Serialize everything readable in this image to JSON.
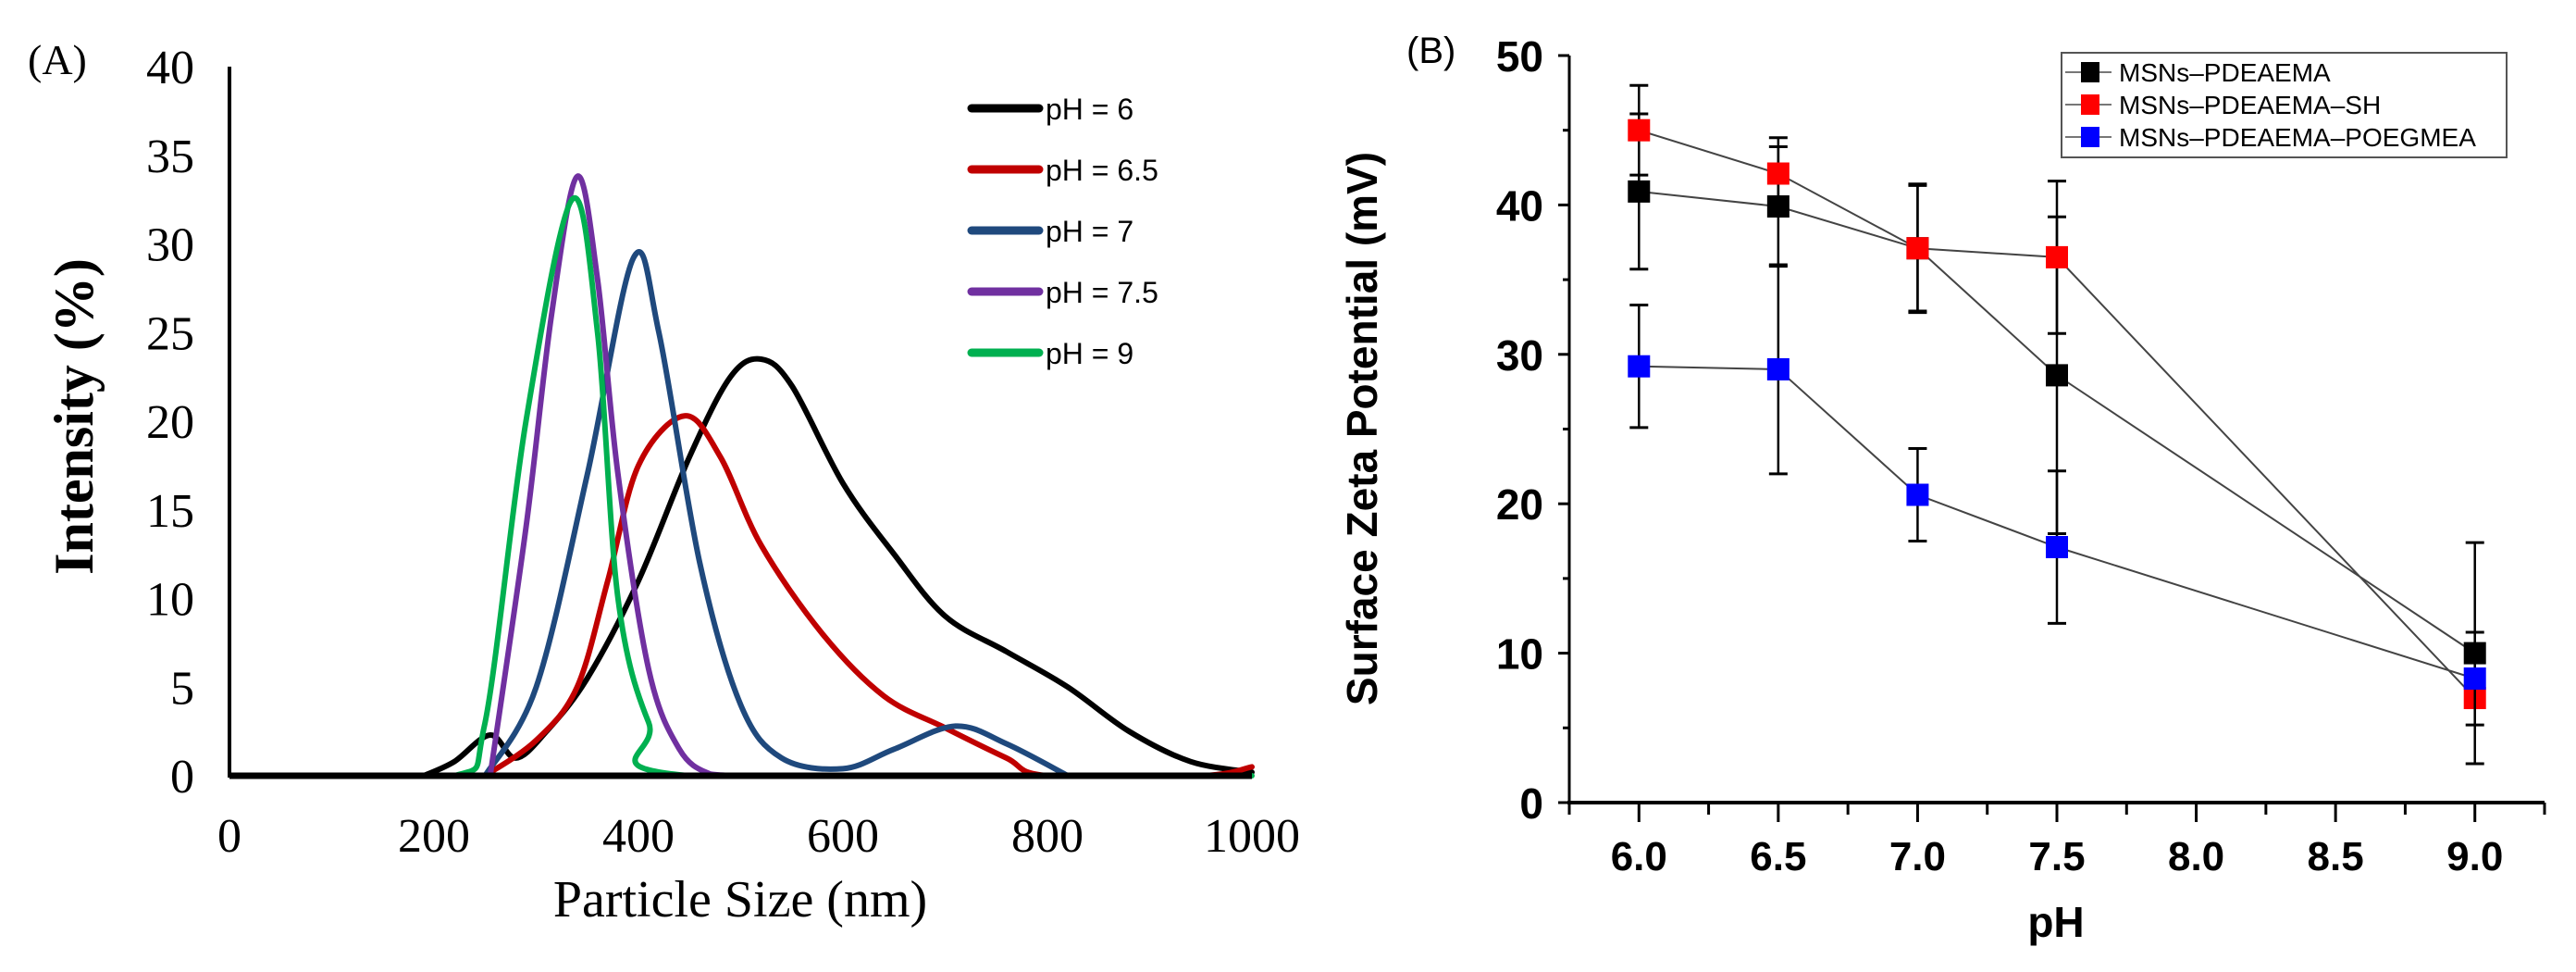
{
  "chart_data": [
    {
      "type": "line",
      "panel_label": "(A)",
      "xlabel": "Particle Size (nm)",
      "ylabel": "Intensity (%)",
      "xlim": [
        0,
        1000
      ],
      "ylim": [
        0,
        40
      ],
      "xticks": [
        "0",
        "200",
        "400",
        "600",
        "800",
        "1000"
      ],
      "yticks": [
        "0",
        "5",
        "10",
        "15",
        "20",
        "25",
        "30",
        "35",
        "40"
      ],
      "grid": false,
      "legend_position": "top-right",
      "series": [
        {
          "name": "pH = 6",
          "color": "#000000",
          "points": [
            [
              190,
              0
            ],
            [
              220,
              0.8
            ],
            [
              255,
              2.3
            ],
            [
              280,
              1.0
            ],
            [
              310,
              2.5
            ],
            [
              350,
              5.5
            ],
            [
              400,
              11
            ],
            [
              450,
              18
            ],
            [
              490,
              22.5
            ],
            [
              520,
              23.5
            ],
            [
              550,
              22
            ],
            [
              600,
              16.5
            ],
            [
              650,
              12.5
            ],
            [
              700,
              9
            ],
            [
              760,
              7
            ],
            [
              820,
              5
            ],
            [
              880,
              2.5
            ],
            [
              940,
              0.8
            ],
            [
              1000,
              0.2
            ]
          ]
        },
        {
          "name": "pH = 6.5",
          "color": "#c00000",
          "points": [
            [
              250,
              0
            ],
            [
              300,
              2
            ],
            [
              340,
              5
            ],
            [
              370,
              11
            ],
            [
              400,
              17.5
            ],
            [
              445,
              20.3
            ],
            [
              480,
              18
            ],
            [
              520,
              13
            ],
            [
              580,
              8
            ],
            [
              640,
              4.5
            ],
            [
              700,
              2.7
            ],
            [
              760,
              1
            ],
            [
              800,
              0
            ],
            [
              950,
              0
            ],
            [
              1000,
              0.5
            ]
          ]
        },
        {
          "name": "pH = 7",
          "color": "#1f497d",
          "points": [
            [
              250,
              0
            ],
            [
              300,
              5
            ],
            [
              350,
              17
            ],
            [
              395,
              29.2
            ],
            [
              420,
              25
            ],
            [
              460,
              12
            ],
            [
              500,
              4
            ],
            [
              540,
              1
            ],
            [
              600,
              0.4
            ],
            [
              650,
              1.5
            ],
            [
              710,
              2.8
            ],
            [
              760,
              1.8
            ],
            [
              820,
              0
            ]
          ]
        },
        {
          "name": "pH = 7.5",
          "color": "#7030a0",
          "points": [
            [
              255,
              0
            ],
            [
              290,
              14
            ],
            [
              315,
              26
            ],
            [
              340,
              33.8
            ],
            [
              360,
              28
            ],
            [
              380,
              17
            ],
            [
              410,
              6
            ],
            [
              440,
              1.5
            ],
            [
              470,
              0.1
            ],
            [
              500,
              0
            ]
          ]
        },
        {
          "name": "pH = 9",
          "color": "#00b050",
          "points": [
            [
              65,
              0
            ],
            [
              220,
              0
            ],
            [
              250,
              3
            ],
            [
              290,
              20
            ],
            [
              335,
              32.5
            ],
            [
              360,
              25
            ],
            [
              380,
              10
            ],
            [
              410,
              3
            ],
            [
              450,
              0
            ],
            [
              1000,
              0
            ]
          ]
        }
      ]
    },
    {
      "type": "scatter",
      "panel_label": "(B)",
      "xlabel": "pH",
      "ylabel": "Surface Zeta Potential (mV)",
      "xlim": [
        5.75,
        9.25
      ],
      "ylim": [
        0,
        50
      ],
      "xticks": [
        "6.0",
        "6.5",
        "7.0",
        "7.5",
        "8.0",
        "8.5",
        "9.0"
      ],
      "yticks": [
        "0",
        "10",
        "20",
        "30",
        "40",
        "50"
      ],
      "grid": false,
      "legend_position": "top-right",
      "series": [
        {
          "name": "MSNs–PDEAEMA",
          "color": "#000000",
          "x": [
            6.0,
            6.5,
            7.0,
            7.5,
            9.0
          ],
          "y": [
            40.9,
            39.9,
            37.1,
            28.6,
            10.0
          ],
          "err": [
            5.2,
            4.0,
            4.2,
            10.6,
            7.4
          ]
        },
        {
          "name": "MSNs–PDEAEMA–SH",
          "color": "#ff0000",
          "x": [
            6.0,
            6.5,
            7.0,
            7.5,
            9.0
          ],
          "y": [
            45.0,
            42.1,
            37.1,
            36.5,
            7.0
          ],
          "err": [
            3.0,
            2.4,
            4.3,
            5.1,
            0.5
          ]
        },
        {
          "name": "MSNs–PDEAEMA–POEGMEA",
          "color": "#0000ff",
          "x": [
            6.0,
            6.5,
            7.0,
            7.5,
            9.0
          ],
          "y": [
            29.2,
            29.0,
            20.6,
            17.1,
            8.3
          ],
          "err": [
            4.1,
            7.0,
            3.1,
            5.1,
            3.1
          ]
        }
      ]
    }
  ]
}
